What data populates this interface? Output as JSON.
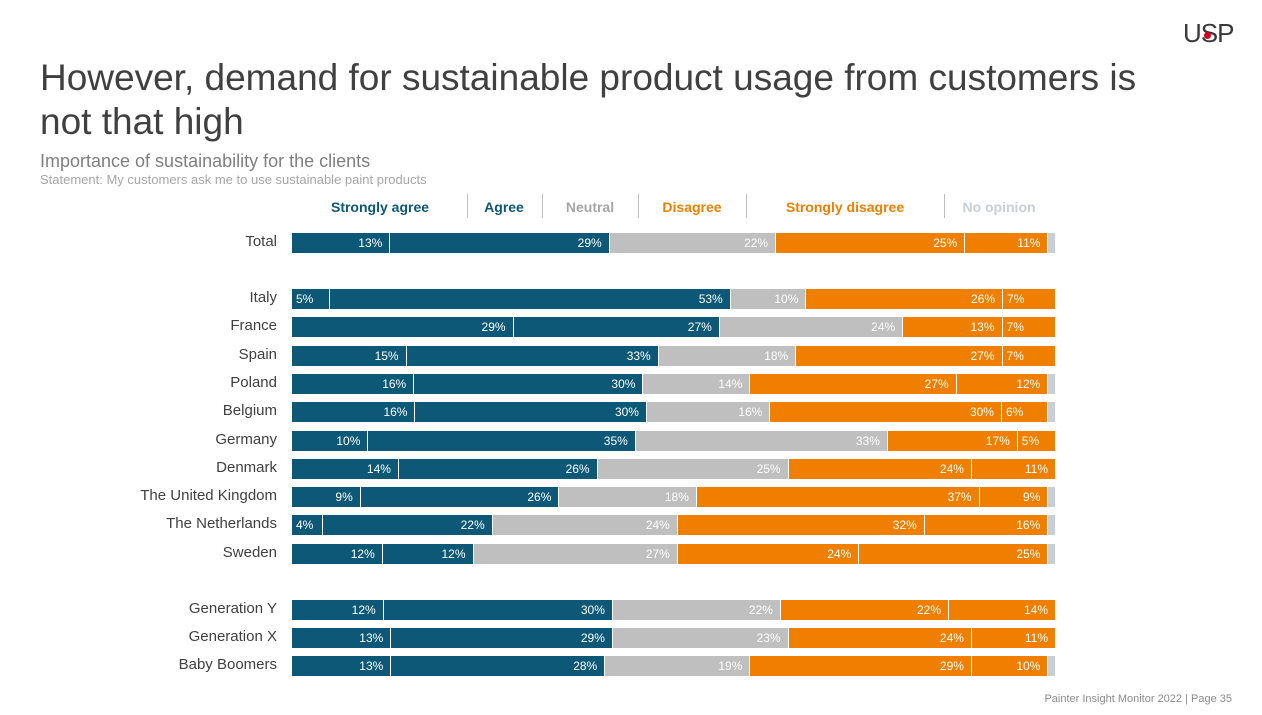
{
  "logo": "USP",
  "title": "However, demand for sustainable product usage from customers is not that high",
  "subtitle": "Importance of sustainability for the clients",
  "statement": "Statement: My customers ask me to use sustainable paint products",
  "footer": "Painter Insight Monitor 2022 | Page 35",
  "colors": {
    "strongly_agree": "#0d5877",
    "agree": "#0d5877",
    "neutral": "#bfbfbf",
    "disagree": "#f07f00",
    "strongly_disagree": "#f07f00",
    "no_opinion": "#c8ced6"
  },
  "chart_data": {
    "type": "bar",
    "orientation": "horizontal",
    "stacked": true,
    "xlim": [
      0,
      100
    ],
    "series": [
      {
        "name": "Strongly agree",
        "key": "strongly_agree"
      },
      {
        "name": "Agree",
        "key": "agree"
      },
      {
        "name": "Neutral",
        "key": "neutral"
      },
      {
        "name": "Disagree",
        "key": "disagree"
      },
      {
        "name": "Strongly disagree",
        "key": "strongly_disagree"
      },
      {
        "name": "No opinion",
        "key": "no_opinion"
      }
    ],
    "legend_label_colors": [
      "#0d5877",
      "#0d5877",
      "#a6a6a6",
      "#f07f00",
      "#f07f00",
      "#c8ced6"
    ],
    "groups": [
      {
        "rows": [
          {
            "label": "Total",
            "values": [
              13,
              29,
              22,
              25,
              11,
              1
            ]
          }
        ]
      },
      {
        "rows": [
          {
            "label": "Italy",
            "values": [
              5,
              53,
              10,
              26,
              7,
              0
            ]
          },
          {
            "label": "France",
            "values": [
              29,
              27,
              24,
              13,
              7,
              0
            ]
          },
          {
            "label": "Spain",
            "values": [
              15,
              33,
              18,
              27,
              7,
              0
            ]
          },
          {
            "label": "Poland",
            "values": [
              16,
              30,
              14,
              27,
              12,
              1
            ]
          },
          {
            "label": "Belgium",
            "values": [
              16,
              30,
              16,
              30,
              6,
              1
            ]
          },
          {
            "label": "Germany",
            "values": [
              10,
              35,
              33,
              17,
              5,
              0
            ]
          },
          {
            "label": "Denmark",
            "values": [
              14,
              26,
              25,
              24,
              11,
              0
            ]
          },
          {
            "label": "The United Kingdom",
            "values": [
              9,
              26,
              18,
              37,
              9,
              1
            ]
          },
          {
            "label": "The Netherlands",
            "values": [
              4,
              22,
              24,
              32,
              16,
              1
            ]
          },
          {
            "label": "Sweden",
            "values": [
              12,
              12,
              27,
              24,
              25,
              1
            ]
          }
        ]
      },
      {
        "rows": [
          {
            "label": "Generation Y",
            "values": [
              12,
              30,
              22,
              22,
              14,
              0
            ]
          },
          {
            "label": "Generation X",
            "values": [
              13,
              29,
              23,
              24,
              11,
              0
            ]
          },
          {
            "label": "Baby Boomers",
            "values": [
              13,
              28,
              19,
              29,
              10,
              1
            ]
          }
        ]
      }
    ]
  }
}
